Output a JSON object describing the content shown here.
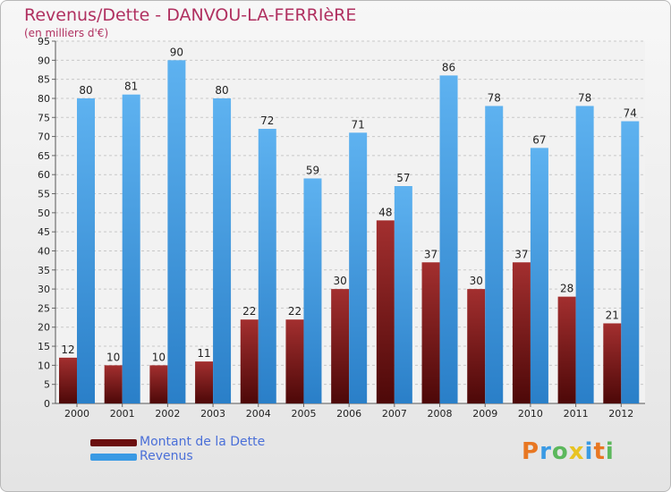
{
  "chart_data": {
    "type": "bar",
    "title": "Revenus/Dette - DANVOU-LA-FERRIèRE",
    "subtitle": "(en milliers d'€)",
    "xlabel": "",
    "ylabel": "",
    "ylim": [
      0,
      95
    ],
    "y_ticks": [
      0,
      5,
      10,
      15,
      20,
      25,
      30,
      35,
      40,
      45,
      50,
      55,
      60,
      65,
      70,
      75,
      80,
      85,
      90,
      95
    ],
    "grid": true,
    "legend_position": "bottom-left",
    "categories": [
      "2000",
      "2001",
      "2002",
      "2003",
      "2004",
      "2005",
      "2006",
      "2007",
      "2008",
      "2009",
      "2010",
      "2011",
      "2012"
    ],
    "series": [
      {
        "name": "Montant de la Dette",
        "color": "#8b1a1a",
        "values": [
          12,
          10,
          10,
          11,
          22,
          22,
          30,
          48,
          37,
          30,
          37,
          28,
          21
        ]
      },
      {
        "name": "Revenus",
        "color": "#3a9ae4",
        "values": [
          80,
          81,
          90,
          80,
          72,
          59,
          71,
          57,
          86,
          78,
          67,
          78,
          74
        ]
      }
    ]
  },
  "legend": {
    "debt_label": "Montant de la Dette",
    "revenue_label": "Revenus"
  },
  "logo": {
    "letters": [
      "P",
      "r",
      "o",
      "x",
      "i",
      "t",
      "i"
    ],
    "colors": [
      "#e87722",
      "#3a9ae4",
      "#5cb85c",
      "#e8c322",
      "#3a9ae4",
      "#e87722",
      "#5cb85c"
    ]
  }
}
